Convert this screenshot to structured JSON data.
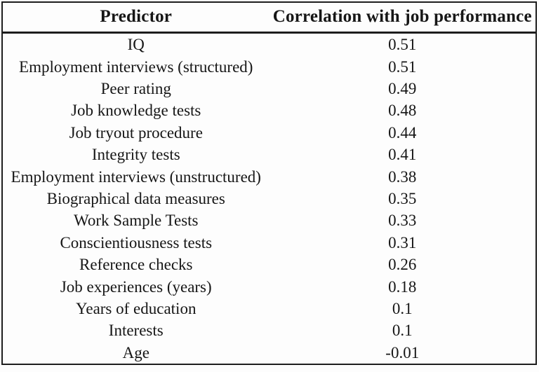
{
  "colors": {
    "border": "#1d1d1d",
    "background": "#fdfdfd",
    "text": "#161616"
  },
  "chart_data": {
    "type": "table",
    "title": "",
    "columns": [
      "Predictor",
      "Correlation with job performance"
    ],
    "rows": [
      [
        "IQ",
        "0.51"
      ],
      [
        "Employment interviews (structured)",
        "0.51"
      ],
      [
        "Peer rating",
        "0.49"
      ],
      [
        "Job knowledge tests",
        "0.48"
      ],
      [
        "Job tryout procedure",
        "0.44"
      ],
      [
        "Integrity tests",
        "0.41"
      ],
      [
        "Employment interviews (unstructured)",
        "0.38"
      ],
      [
        "Biographical data measures",
        "0.35"
      ],
      [
        "Work Sample Tests",
        "0.33"
      ],
      [
        "Conscientiousness tests",
        "0.31"
      ],
      [
        "Reference checks",
        "0.26"
      ],
      [
        "Job experiences (years)",
        "0.18"
      ],
      [
        "Years of education",
        "0.1"
      ],
      [
        "Interests",
        "0.1"
      ],
      [
        "Age",
        "-0.01"
      ]
    ]
  }
}
